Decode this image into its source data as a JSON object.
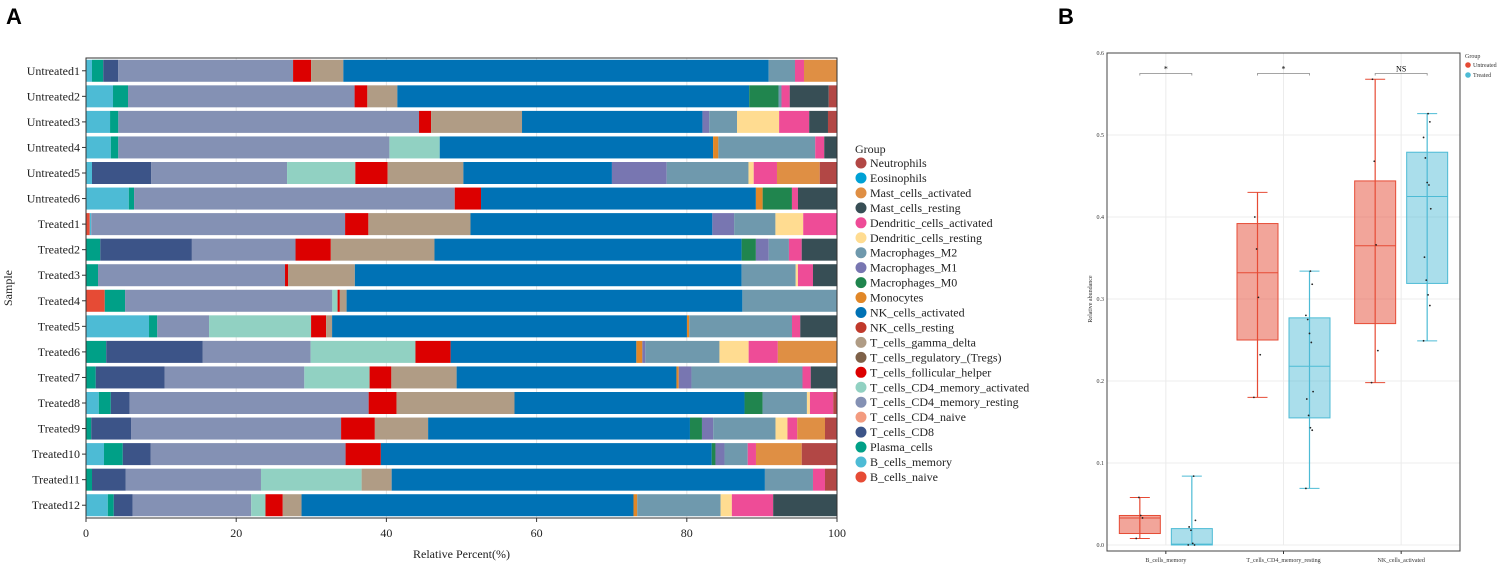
{
  "chart_data": [
    {
      "type": "bar",
      "orientation": "horizontal-stacked",
      "panel_label": "A",
      "xlabel": "Relative Percent(%)",
      "ylabel": "Sample",
      "xlim": [
        0,
        100
      ],
      "xticks": [
        "0",
        "20",
        "40",
        "60",
        "80",
        "100"
      ],
      "legend_title": "Group",
      "legend_position": "right",
      "cell_types": [
        "B_cells_naive",
        "B_cells_memory",
        "Plasma_cells",
        "T_cells_CD8",
        "T_cells_CD4_naive",
        "T_cells_CD4_memory_resting",
        "T_cells_CD4_memory_activated",
        "T_cells_follicular_helper",
        "T_cells_regulatory_(Tregs)",
        "T_cells_gamma_delta",
        "NK_cells_resting",
        "NK_cells_activated",
        "Monocytes",
        "Macrophages_M0",
        "Macrophages_M1",
        "Macrophages_M2",
        "Dendritic_cells_resting",
        "Dendritic_cells_activated",
        "Mast_cells_resting",
        "Mast_cells_activated",
        "Eosinophils",
        "Neutrophils"
      ],
      "colors": [
        "#e64b35",
        "#4dbbd5",
        "#00a087",
        "#3c5488",
        "#f39b7f",
        "#8491b4",
        "#91d1c2",
        "#dc0000",
        "#7e6148",
        "#b09c85",
        "#c0392b",
        "#0072b5",
        "#e18727",
        "#20854e",
        "#7876b1",
        "#6f99ad",
        "#ffdc91",
        "#ee4c97",
        "#374e55",
        "#df8f44",
        "#00a1d5",
        "#b24745"
      ],
      "samples": [
        {
          "name": "Untreated1",
          "values": [
            0,
            0.8,
            1.5,
            2,
            0,
            23.3,
            0,
            2.4,
            0,
            4.3,
            0,
            56.7,
            0,
            0,
            0,
            3.5,
            0,
            1.2,
            0,
            4.4,
            0,
            0
          ]
        },
        {
          "name": "Untreated2",
          "values": [
            0,
            3.6,
            2,
            0,
            0,
            30.2,
            0,
            1.7,
            0,
            4,
            0,
            46.9,
            0,
            3.9,
            0,
            0.4,
            0,
            1.1,
            5.2,
            0,
            0,
            1.1
          ]
        },
        {
          "name": "Untreated3",
          "values": [
            0,
            3.2,
            1.1,
            0,
            0,
            40,
            0,
            1.6,
            0,
            12.1,
            0,
            24,
            0,
            0,
            0.9,
            3.7,
            5.6,
            4,
            2.5,
            0,
            0,
            1.2
          ]
        },
        {
          "name": "Untreated4",
          "values": [
            0,
            3.3,
            1,
            0,
            0,
            36.1,
            6.7,
            0,
            0,
            0,
            0,
            36.4,
            0.7,
            0,
            0,
            12.9,
            0,
            1.2,
            1.7,
            0,
            0,
            0
          ]
        },
        {
          "name": "Untreated5",
          "values": [
            0,
            0.8,
            0,
            7.9,
            0,
            18.1,
            9.1,
            4.3,
            0,
            10.1,
            0,
            19.8,
            0,
            0,
            7.3,
            10.9,
            0.7,
            3.1,
            0,
            5.7,
            0,
            2.3
          ]
        },
        {
          "name": "Untreated6",
          "values": [
            0,
            5.7,
            0.7,
            0,
            0,
            42.7,
            0,
            3.5,
            0,
            0,
            0,
            36.6,
            0.9,
            3.9,
            0,
            0,
            0,
            0.8,
            5.2,
            0,
            0,
            0
          ]
        },
        {
          "name": "Treated1",
          "values": [
            0.5,
            0.2,
            0,
            0,
            0,
            33.8,
            0,
            3.1,
            0,
            13.6,
            0,
            32.2,
            0,
            0,
            2.9,
            5.5,
            3.7,
            4.5,
            0,
            0,
            0,
            0
          ]
        },
        {
          "name": "Treated2",
          "values": [
            0,
            0,
            1.9,
            12.2,
            0,
            13.8,
            0,
            4.7,
            0,
            13.8,
            0,
            40.9,
            0,
            1.9,
            1.7,
            2.7,
            0,
            1.7,
            4.7,
            0,
            0,
            0
          ]
        },
        {
          "name": "Treated3",
          "values": [
            0,
            0,
            1.6,
            0,
            0,
            24.9,
            0,
            0.4,
            0,
            8.9,
            0,
            51.5,
            0,
            0,
            0,
            7.2,
            0.3,
            2,
            3.2,
            0,
            0,
            0
          ]
        },
        {
          "name": "Treated4",
          "values": [
            2.5,
            0,
            2.7,
            0,
            0,
            27.6,
            0.7,
            0.3,
            0,
            0.9,
            0,
            52.7,
            0,
            0,
            0,
            12.6,
            0,
            0,
            0,
            0,
            0,
            0
          ]
        },
        {
          "name": "Treated5",
          "values": [
            0,
            8.4,
            1.1,
            0,
            0,
            6.9,
            13.6,
            2,
            0,
            0.8,
            0,
            47.3,
            0.3,
            0,
            0,
            13.7,
            0,
            1.1,
            4.9,
            0,
            0,
            0
          ]
        },
        {
          "name": "Treated6",
          "values": [
            0,
            0,
            2.7,
            12.9,
            0,
            14.4,
            14,
            4.7,
            0,
            0,
            0,
            24.8,
            0.8,
            0,
            0.4,
            9.9,
            3.9,
            3.9,
            0,
            7.9,
            0,
            0
          ]
        },
        {
          "name": "Treated7",
          "values": [
            0,
            0,
            1.3,
            9.2,
            0,
            18.6,
            8.7,
            2.9,
            0,
            8.7,
            0,
            29.3,
            0.3,
            0,
            1.7,
            14.8,
            0,
            1.1,
            3.5,
            0,
            0,
            0
          ]
        },
        {
          "name": "Treated8",
          "values": [
            0,
            1.7,
            1.6,
            2.5,
            0,
            31.8,
            0,
            3.7,
            0,
            15.7,
            0,
            30.6,
            0,
            2.4,
            0,
            5.9,
            0.4,
            3.1,
            0,
            0,
            0,
            0.5
          ]
        },
        {
          "name": "Treated9",
          "values": [
            0,
            0,
            0.7,
            5.3,
            0,
            28,
            0,
            4.5,
            0,
            7.1,
            0,
            34.9,
            0,
            1.6,
            1.5,
            8.3,
            1.6,
            1.3,
            0,
            3.7,
            0,
            1.6
          ]
        },
        {
          "name": "Treated10",
          "values": [
            0,
            2.4,
            2.5,
            3.7,
            0,
            26,
            0,
            4.7,
            0,
            0,
            0,
            44.1,
            0,
            0.5,
            1.2,
            3.1,
            0,
            1.1,
            0,
            6.1,
            0,
            4.7
          ]
        },
        {
          "name": "Treated11",
          "values": [
            0,
            0,
            0.8,
            4.5,
            0,
            18,
            13.4,
            0,
            0,
            4,
            0,
            49.7,
            0,
            0,
            0,
            6.4,
            0,
            1.6,
            0,
            0,
            0,
            1.6
          ]
        },
        {
          "name": "Treated12",
          "values": [
            0,
            2.9,
            0.8,
            2.5,
            0,
            15.8,
            1.9,
            2.3,
            0,
            2.5,
            0,
            44.2,
            0.5,
            0,
            0,
            11.1,
            1.5,
            5.5,
            8.5,
            0,
            0,
            0
          ]
        }
      ]
    },
    {
      "type": "boxplot",
      "panel_label": "B",
      "ylabel": "Relative abundance",
      "ylim": [
        0,
        0.6
      ],
      "yticks": [
        "0.0",
        "0.1",
        "0.2",
        "0.3",
        "0.4",
        "0.5",
        "0.6"
      ],
      "legend_title": "Group",
      "legend_position": "top-right",
      "groups": [
        {
          "name": "Untreated",
          "color": "#e64b35"
        },
        {
          "name": "Treated",
          "color": "#4dbbd5"
        }
      ],
      "categories": [
        {
          "name": "B_cells_memory",
          "significance": "*",
          "boxes": [
            {
              "min": 0.008,
              "q1": 0.014,
              "median": 0.033,
              "q3": 0.036,
              "max": 0.058,
              "points": [
                0.008,
                0.033,
                0.036,
                0.058
              ]
            },
            {
              "min": 0.0,
              "q1": 0.0,
              "median": 0.001,
              "q3": 0.02,
              "max": 0.084,
              "points": [
                0,
                0,
                0.002,
                0.018,
                0.022,
                0.03,
                0.084
              ]
            }
          ]
        },
        {
          "name": "T_cells_CD4_memory_resting",
          "significance": "*",
          "boxes": [
            {
              "min": 0.18,
              "q1": 0.25,
              "median": 0.332,
              "q3": 0.392,
              "max": 0.43,
              "points": [
                0.18,
                0.232,
                0.302,
                0.361,
                0.4
              ]
            },
            {
              "min": 0.069,
              "q1": 0.155,
              "median": 0.218,
              "q3": 0.277,
              "max": 0.334,
              "points": [
                0.069,
                0.14,
                0.143,
                0.158,
                0.178,
                0.187,
                0.247,
                0.258,
                0.275,
                0.28,
                0.318,
                0.334
              ]
            }
          ]
        },
        {
          "name": "NK_cells_activated",
          "significance": "NS",
          "boxes": [
            {
              "min": 0.198,
              "q1": 0.27,
              "median": 0.365,
              "q3": 0.444,
              "max": 0.568,
              "points": [
                0.198,
                0.237,
                0.366,
                0.468,
                0.568
              ]
            },
            {
              "min": 0.249,
              "q1": 0.319,
              "median": 0.425,
              "q3": 0.479,
              "max": 0.526,
              "points": [
                0.249,
                0.292,
                0.305,
                0.323,
                0.351,
                0.41,
                0.439,
                0.442,
                0.472,
                0.497,
                0.516,
                0.526
              ]
            }
          ]
        }
      ]
    }
  ]
}
